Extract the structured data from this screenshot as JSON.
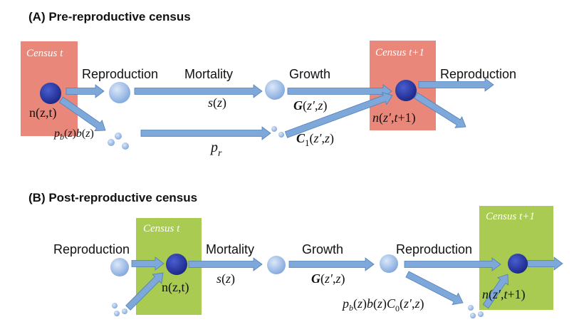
{
  "colors": {
    "census_pre": "#e9877a",
    "census_post": "#a9cb52",
    "arrow": "#7fa8da",
    "arrow_edge": "#4f7fb8",
    "dot_light": "#8fb4e3",
    "dot_dark": "#1f2f9c"
  },
  "panelA": {
    "heading": "(A)  Pre-reproductive census",
    "census_t": "Census t",
    "census_t1": "Census t+1",
    "reproduction_1": "Reproduction",
    "mortality": "Mortality",
    "growth": "Growth",
    "reproduction_2": "Reproduction",
    "n_zt": "n(z,t)",
    "pb_bz": "p_b(z)b(z)",
    "s_z": "s(z)",
    "p_r": "p_r",
    "G": "G(z′,z)",
    "C1": "C_1(z′,z)",
    "n_next": "n(z′,t+1)"
  },
  "panelB": {
    "heading": "(B)  Post-reproductive census",
    "census_t": "Census t",
    "census_t1": "Census t+1",
    "reproduction_1": "Reproduction",
    "mortality": "Mortality",
    "growth": "Growth",
    "reproduction_2": "Reproduction",
    "n_zt": "n(z,t)",
    "s_z": "s(z)",
    "G": "G(z′,z)",
    "pb_bz_C0": "p_b(z)b(z)C_0(z′,z)",
    "n_next": "n(z′,t+1)"
  }
}
